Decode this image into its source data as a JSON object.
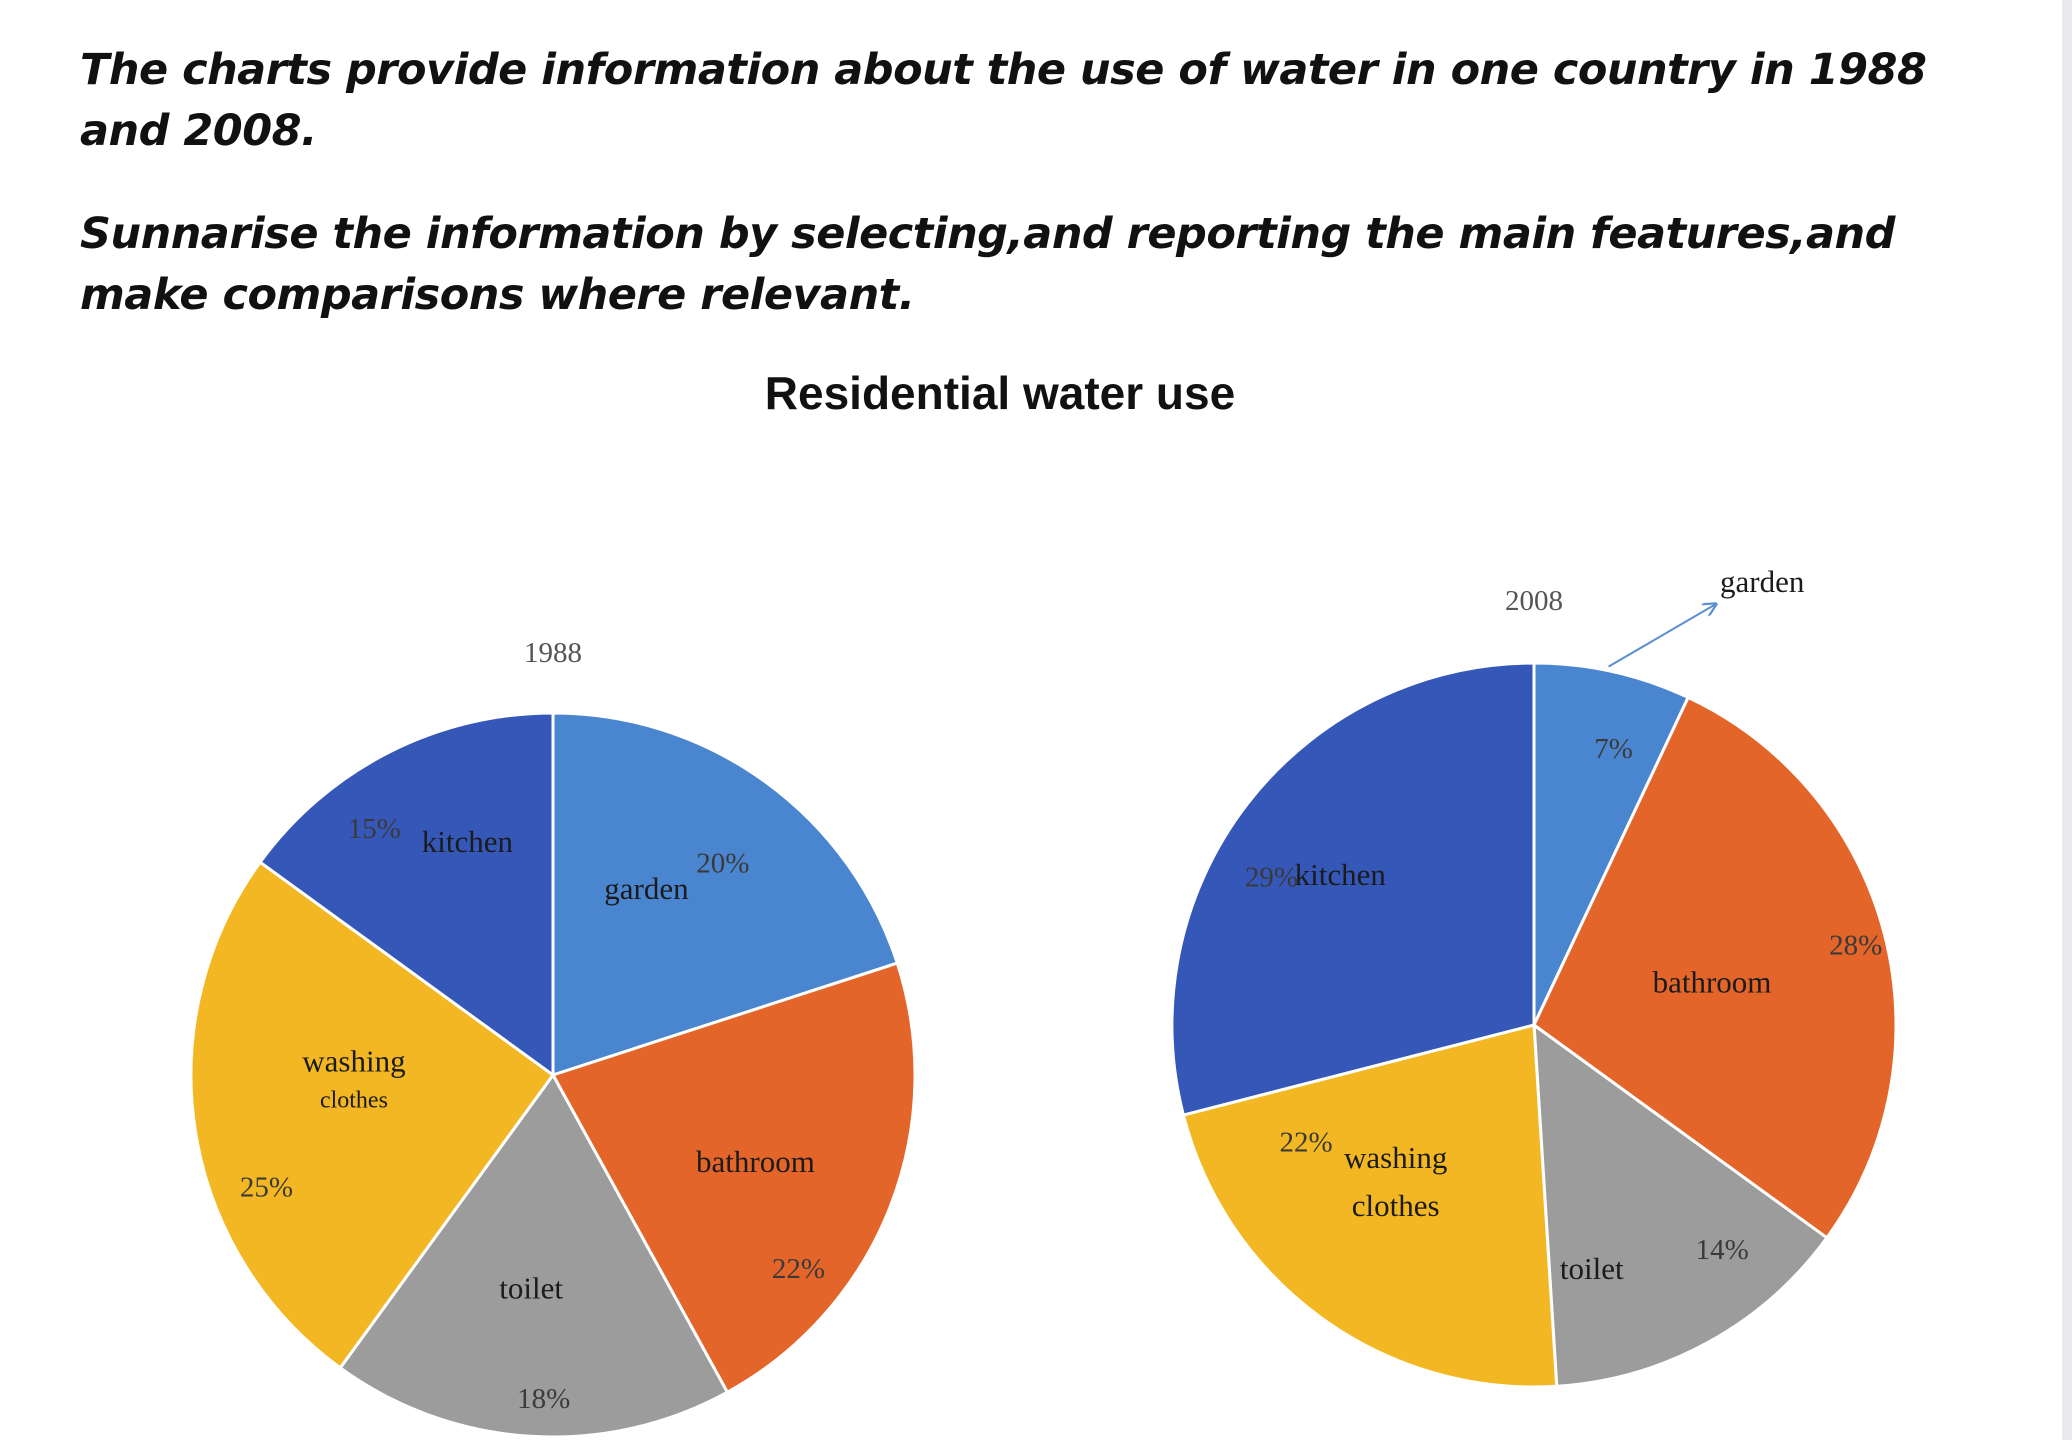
{
  "prompt": {
    "line1": "The charts provide information about the use of water in one country in 1988 and 2008.",
    "line2": "Sunnarise the information by selecting,and reporting the main features,and make comparisons where relevant."
  },
  "chart_data": [
    {
      "type": "pie",
      "title": "Residential water use",
      "subtitle": "1988",
      "categories": [
        "garden",
        "bathroom",
        "toilet",
        "washing clothes",
        "kitchen"
      ],
      "values": [
        20,
        22,
        18,
        25,
        15
      ],
      "value_labels": [
        "20%",
        "22%",
        "18%",
        "25%",
        "15%"
      ],
      "colors": [
        "#4a86cf",
        "#e4652a",
        "#9c9c9c",
        "#f2b722",
        "#3558b8"
      ]
    },
    {
      "type": "pie",
      "title": "Residential water use",
      "subtitle": "2008",
      "categories": [
        "garden",
        "bathroom",
        "toilet",
        "washing clothes",
        "kitchen"
      ],
      "values": [
        7,
        28,
        14,
        22,
        29
      ],
      "value_labels": [
        "7%",
        "28%",
        "14%",
        "22%",
        "29%"
      ],
      "colors": [
        "#4a86cf",
        "#e4652a",
        "#9c9c9c",
        "#f2b722",
        "#3558b8"
      ]
    }
  ]
}
